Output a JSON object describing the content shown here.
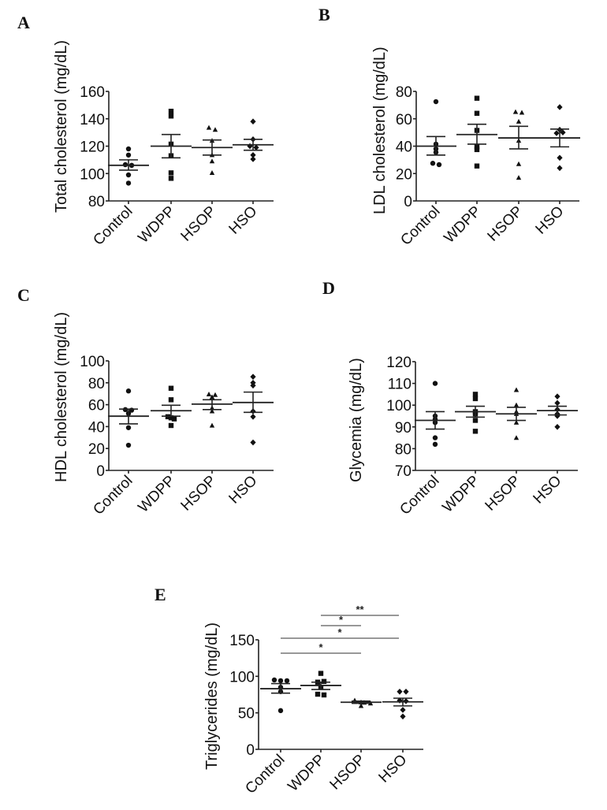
{
  "figure": {
    "categories": [
      "Control",
      "WDPP",
      "HSOP",
      "HSO"
    ],
    "markers": [
      "circle",
      "square",
      "triangle",
      "diamond"
    ]
  },
  "chart_data": [
    {
      "panel": "A",
      "type": "scatter",
      "title": "",
      "xlabel": "",
      "ylabel": "Total cholesterol (mg/dL)",
      "categories": [
        "Control",
        "WDPP",
        "HSOP",
        "HSO"
      ],
      "ylim": [
        80,
        160
      ],
      "yticks": [
        80,
        100,
        120,
        140,
        160
      ],
      "grid": false,
      "series": [
        {
          "name": "Control",
          "marker": "circle",
          "values": [
            118,
            113.5,
            106.5,
            106,
            99,
            93
          ],
          "mean": 106,
          "sem": [
            102.5,
            110
          ]
        },
        {
          "name": "WDPP",
          "marker": "square",
          "values": [
            145.5,
            142,
            121.5,
            113,
            100.5,
            96.5
          ],
          "mean": 120,
          "sem": [
            111.5,
            128.5
          ]
        },
        {
          "name": "HSOP",
          "marker": "triangle",
          "values": [
            133.5,
            132,
            124,
            113.5,
            109,
            100.5
          ],
          "mean": 119,
          "sem": [
            113.5,
            124.5
          ]
        },
        {
          "name": "HSO",
          "marker": "diamond",
          "values": [
            138,
            125,
            120,
            119,
            113.5,
            110.5
          ],
          "mean": 121,
          "sem": [
            117,
            125
          ]
        }
      ],
      "significance": []
    },
    {
      "panel": "B",
      "type": "scatter",
      "title": "",
      "xlabel": "",
      "ylabel": "LDL cholesterol (mg/dL)",
      "categories": [
        "Control",
        "WDPP",
        "HSOP",
        "HSO"
      ],
      "ylim": [
        0,
        80
      ],
      "yticks": [
        0,
        20,
        40,
        60,
        80
      ],
      "grid": false,
      "series": [
        {
          "name": "Control",
          "marker": "circle",
          "values": [
            72.5,
            41.5,
            38,
            35.5,
            27.5,
            26.5
          ],
          "mean": 40,
          "sem": [
            33.5,
            47
          ]
        },
        {
          "name": "WDPP",
          "marker": "square",
          "values": [
            75,
            64,
            51.5,
            39.5,
            37.5,
            25.5
          ],
          "mean": 48.5,
          "sem": [
            41.5,
            56
          ]
        },
        {
          "name": "HSOP",
          "marker": "triangle",
          "values": [
            65,
            64.5,
            58,
            44,
            27,
            17
          ],
          "mean": 46,
          "sem": [
            38,
            54.5
          ]
        },
        {
          "name": "HSO",
          "marker": "diamond",
          "values": [
            68.5,
            52,
            49.5,
            50,
            31.5,
            24
          ],
          "mean": 46,
          "sem": [
            39.5,
            52.5
          ]
        }
      ],
      "significance": []
    },
    {
      "panel": "C",
      "type": "scatter",
      "title": "",
      "xlabel": "",
      "ylabel": "HDL cholesterol (mg/dL)",
      "categories": [
        "Control",
        "WDPP",
        "HSOP",
        "HSO"
      ],
      "ylim": [
        0,
        100
      ],
      "yticks": [
        0,
        20,
        40,
        60,
        80,
        100
      ],
      "grid": false,
      "series": [
        {
          "name": "Control",
          "marker": "circle",
          "values": [
            72.5,
            55.5,
            55,
            52,
            39,
            23
          ],
          "mean": 49.5,
          "sem": [
            42.5,
            56
          ]
        },
        {
          "name": "WDPP",
          "marker": "square",
          "values": [
            75,
            64.5,
            49,
            48,
            47,
            41
          ],
          "mean": 54.5,
          "sem": [
            49.5,
            59.5
          ]
        },
        {
          "name": "HSOP",
          "marker": "triangle",
          "values": [
            69.5,
            69,
            67,
            57,
            54,
            41
          ],
          "mean": 60.5,
          "sem": [
            55.5,
            64.5
          ]
        },
        {
          "name": "HSO",
          "marker": "diamond",
          "values": [
            85.5,
            80,
            77.5,
            54,
            49,
            25.5
          ],
          "mean": 62,
          "sem": [
            53,
            71.5
          ]
        }
      ],
      "significance": []
    },
    {
      "panel": "D",
      "type": "scatter",
      "title": "",
      "xlabel": "",
      "ylabel": "Glycemia (mg/dL)",
      "categories": [
        "Control",
        "WDPP",
        "HSOP",
        "HSO"
      ],
      "ylim": [
        70,
        120
      ],
      "yticks": [
        70,
        80,
        90,
        100,
        110,
        120
      ],
      "grid": false,
      "series": [
        {
          "name": "Control",
          "marker": "circle",
          "values": [
            110,
            95,
            93.5,
            92,
            85,
            82
          ],
          "mean": 93,
          "sem": [
            89,
            97
          ]
        },
        {
          "name": "WDPP",
          "marker": "square",
          "values": [
            105,
            103,
            97,
            96,
            93,
            88
          ],
          "mean": 97,
          "sem": [
            94.5,
            99.5
          ]
        },
        {
          "name": "HSOP",
          "marker": "triangle",
          "values": [
            107,
            100,
            97,
            96,
            92,
            85
          ],
          "mean": 96,
          "sem": [
            93,
            99
          ]
        },
        {
          "name": "HSO",
          "marker": "diamond",
          "values": [
            104,
            101,
            98,
            96,
            95,
            90
          ],
          "mean": 97.5,
          "sem": [
            95.5,
            99.5
          ]
        }
      ],
      "significance": []
    },
    {
      "panel": "E",
      "type": "scatter",
      "title": "",
      "xlabel": "",
      "ylabel": "Triglycerides (mg/dL)",
      "categories": [
        "Control",
        "WDPP",
        "HSOP",
        "HSO"
      ],
      "ylim": [
        0,
        150
      ],
      "yticks": [
        0,
        50,
        100,
        150
      ],
      "grid": false,
      "series": [
        {
          "name": "Control",
          "marker": "circle",
          "values": [
            95,
            94,
            94,
            85,
            79,
            53
          ],
          "mean": 83,
          "sem": [
            77,
            90
          ]
        },
        {
          "name": "WDPP",
          "marker": "square",
          "values": [
            104,
            92,
            93,
            85,
            75.5,
            74.5
          ],
          "mean": 87.5,
          "sem": [
            82,
            92
          ]
        },
        {
          "name": "HSOP",
          "marker": "triangle",
          "values": [
            67,
            65,
            64.5,
            64,
            63,
            59.5
          ],
          "mean": 64.5,
          "sem": [
            63,
            66
          ]
        },
        {
          "name": "HSO",
          "marker": "diamond",
          "values": [
            79,
            79,
            67,
            66,
            54,
            45
          ],
          "mean": 65,
          "sem": [
            59.5,
            70
          ]
        }
      ],
      "significance": [
        {
          "from": "WDPP",
          "to": "HSO",
          "label": "**"
        },
        {
          "from": "WDPP",
          "to": "HSOP",
          "label": "*"
        },
        {
          "from": "Control",
          "to": "HSO",
          "label": "*"
        },
        {
          "from": "Control",
          "to": "HSOP",
          "label": "*"
        }
      ]
    }
  ],
  "panels": {
    "A": {
      "letter": "A",
      "ylabel": "Total cholesterol (mg/dL)"
    },
    "B": {
      "letter": "B",
      "ylabel": "LDL cholesterol (mg/dL)"
    },
    "C": {
      "letter": "C",
      "ylabel": "HDL cholesterol (mg/dL)"
    },
    "D": {
      "letter": "D",
      "ylabel": "Glycemia (mg/dL)"
    },
    "E": {
      "letter": "E",
      "ylabel": "Triglycerides (mg/dL)"
    }
  }
}
